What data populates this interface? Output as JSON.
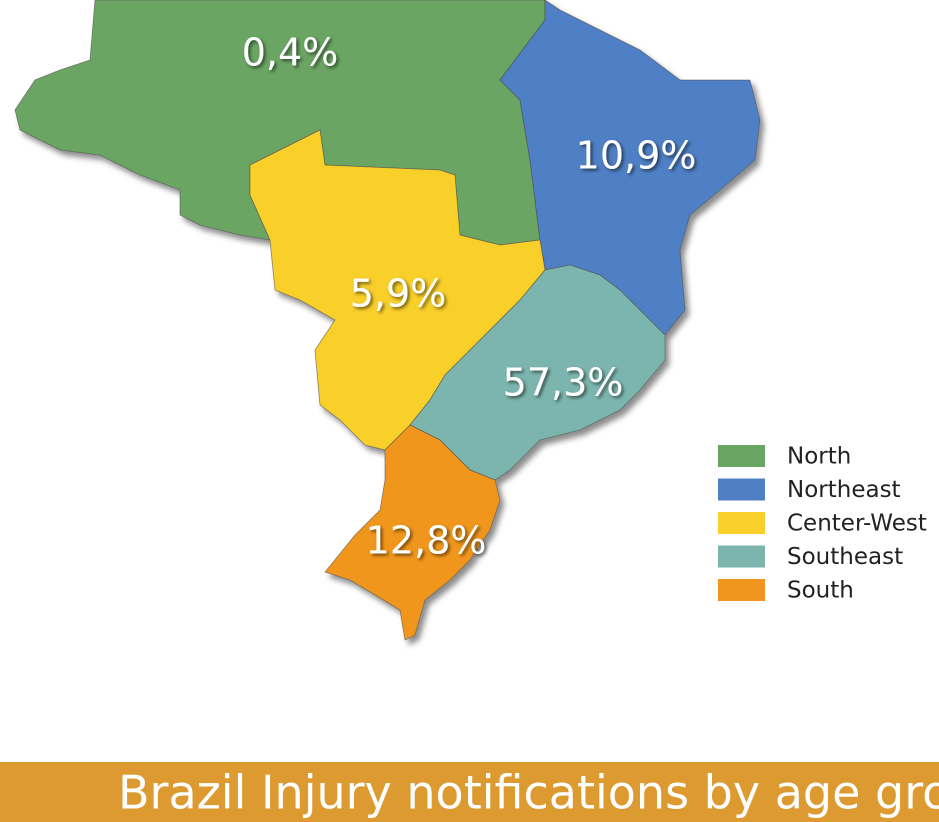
{
  "regions": [
    {
      "name": "North",
      "label": "0,4%",
      "color": "#6aa564"
    },
    {
      "name": "Northeast",
      "label": "10,9%",
      "color": "#4f7fc4"
    },
    {
      "name": "Center-West",
      "label": "5,9%",
      "color": "#f9cf2a"
    },
    {
      "name": "Southeast",
      "label": "57,3%",
      "color": "#7cb5ae"
    },
    {
      "name": "South",
      "label": "12,8%",
      "color": "#f0961f"
    }
  ],
  "banner": {
    "title": "Brazil Injury notifications by age grou",
    "color": "#dd9a30"
  }
}
